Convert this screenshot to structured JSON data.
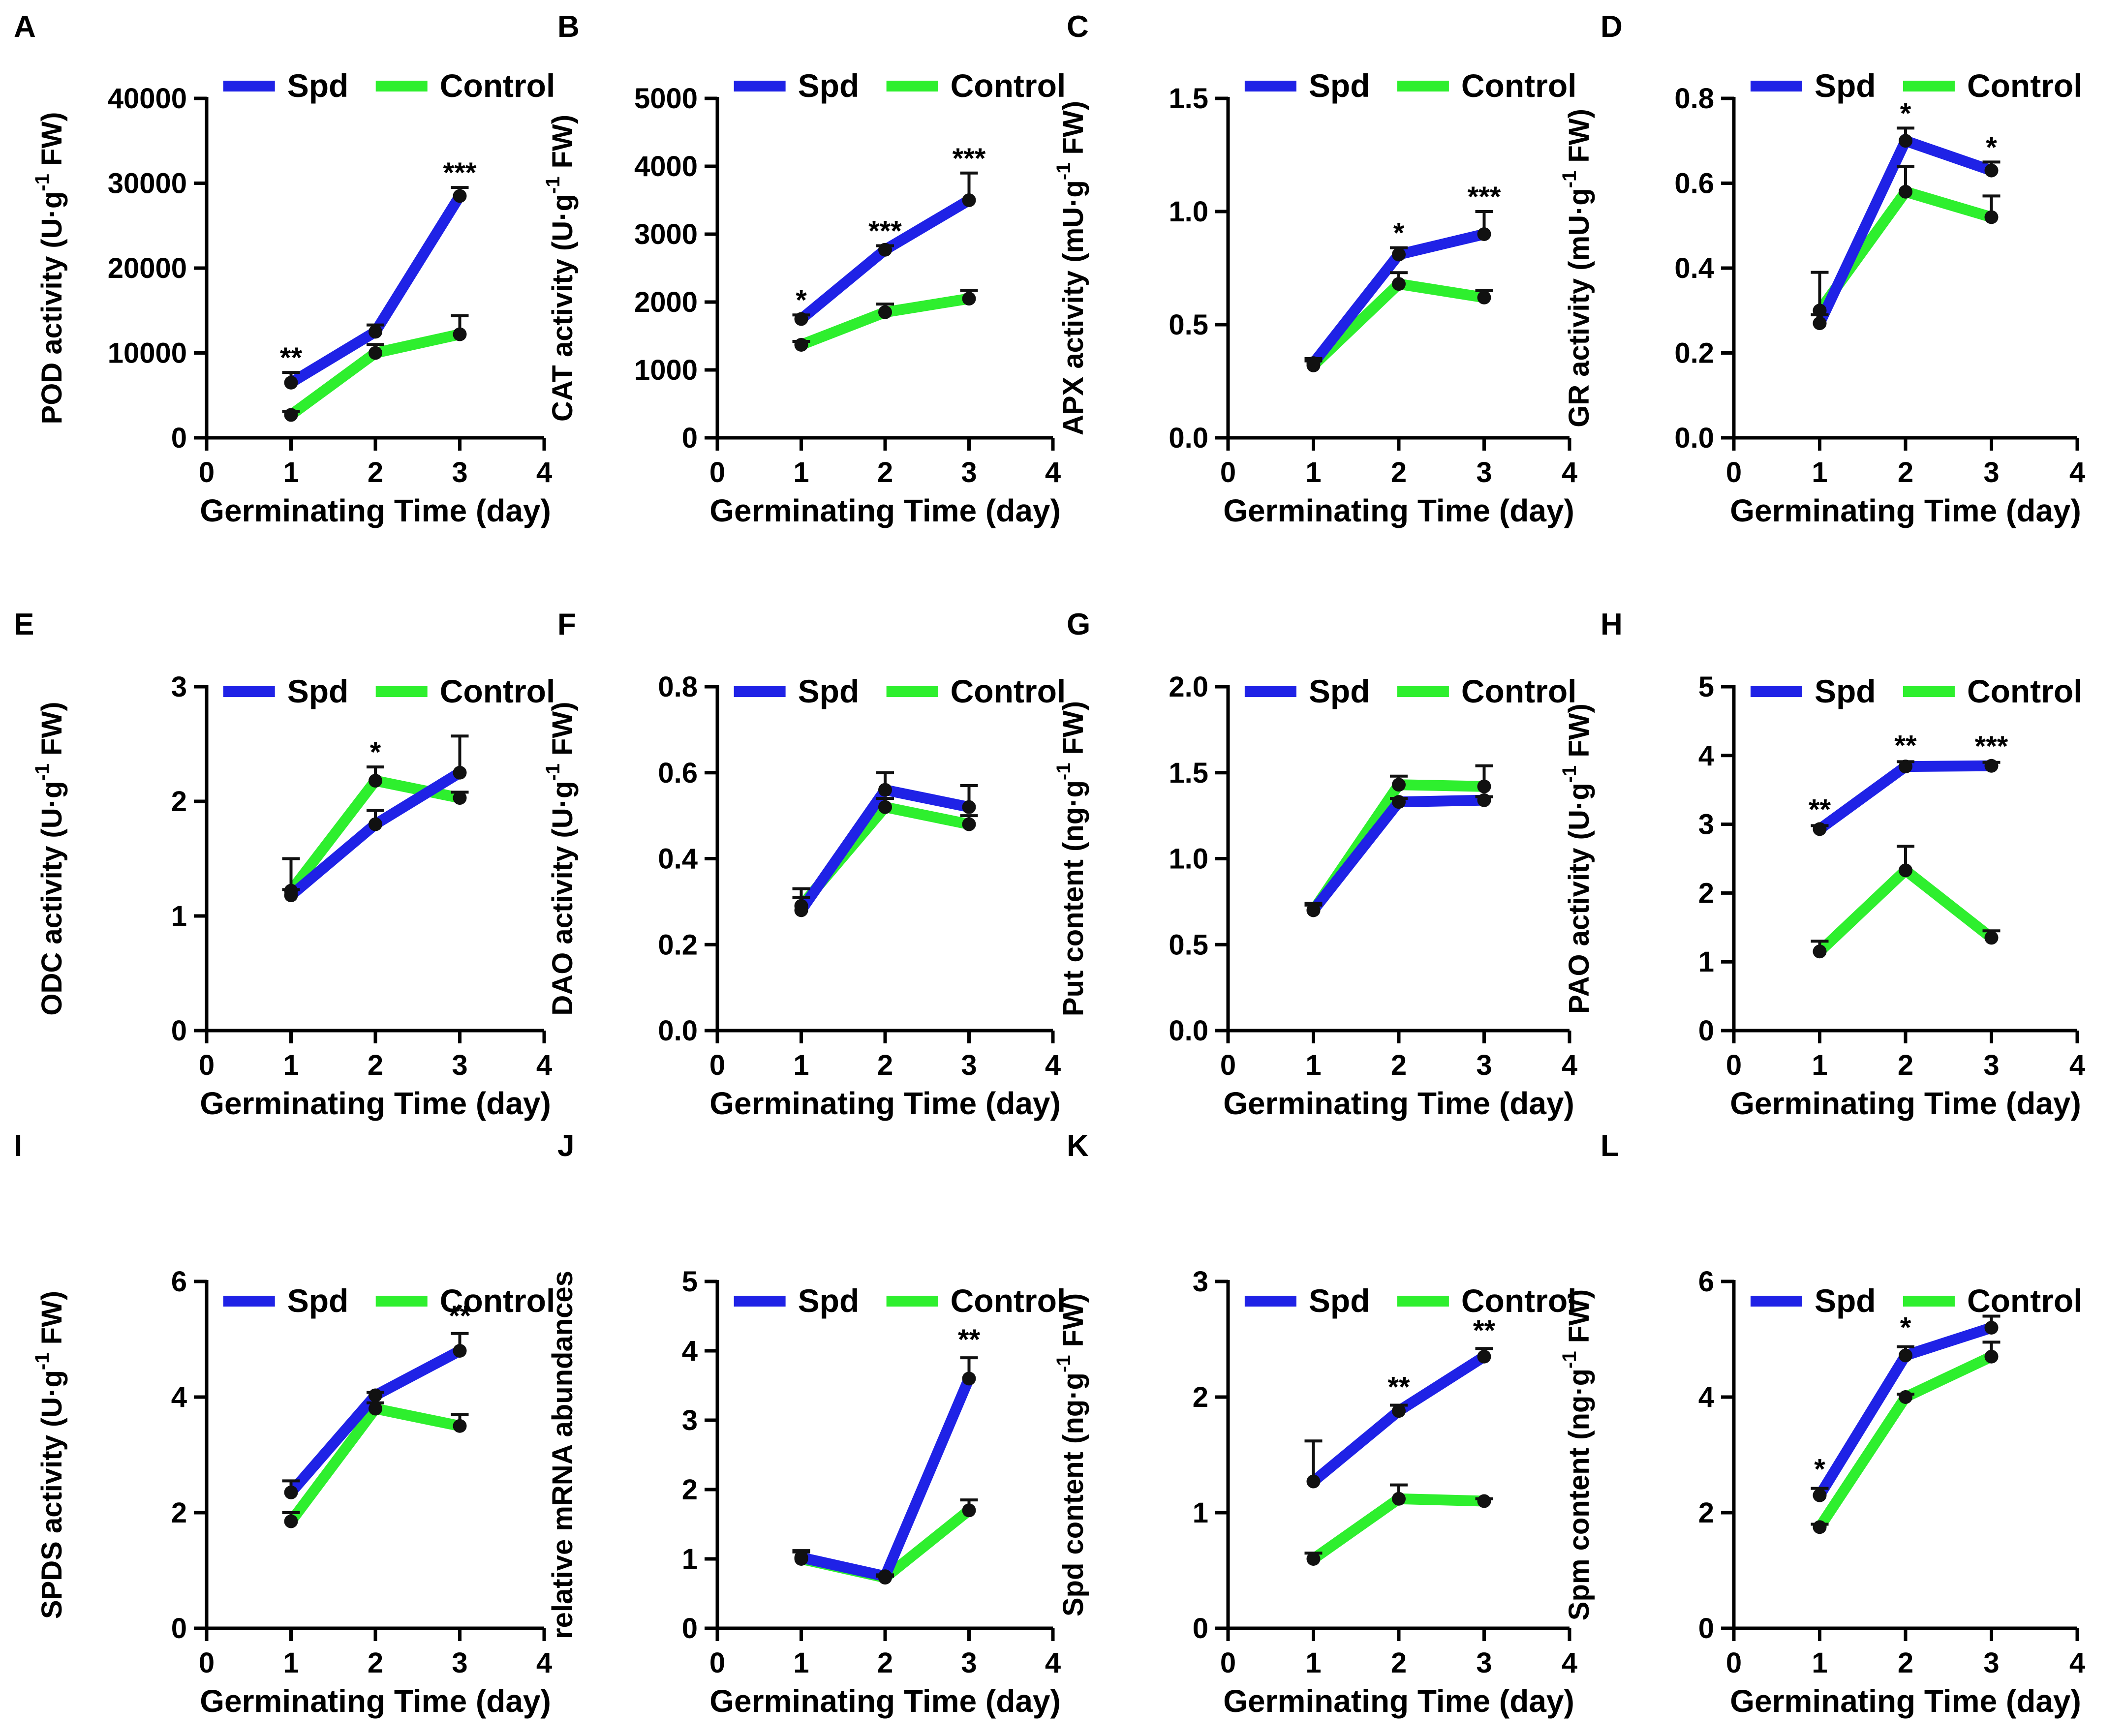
{
  "figure": {
    "colors": {
      "spd": "#1f22e6",
      "control": "#2eef2e",
      "axis": "#000000",
      "marker": "#111111"
    },
    "legend": {
      "spd": "Spd",
      "control": "Control"
    }
  },
  "chart_data": [
    {
      "panel": "A",
      "type": "line",
      "title": "",
      "xlabel": "Germinating Time (day)",
      "ylabel": {
        "main": "POD activity (U·g",
        "sup": "-1",
        "tail": " FW)"
      },
      "x": [
        1,
        2,
        3
      ],
      "xlim": [
        0,
        4
      ],
      "xticks": [
        0,
        1,
        2,
        3,
        4
      ],
      "ylim": [
        0,
        40000
      ],
      "yticks": [
        "0",
        "10000",
        "20000",
        "30000",
        "40000"
      ],
      "series": [
        {
          "name": "Spd",
          "values": [
            6500,
            12500,
            28500
          ],
          "err": [
            1200,
            800,
            1000
          ]
        },
        {
          "name": "Control",
          "values": [
            2700,
            10000,
            12200
          ],
          "err": [
            400,
            1000,
            2200
          ]
        }
      ],
      "annotations": [
        {
          "x": 1,
          "y": 7700,
          "text": "**"
        },
        {
          "x": 3,
          "y": 29500,
          "text": "***"
        }
      ],
      "legend_position": "top"
    },
    {
      "panel": "B",
      "type": "line",
      "title": "",
      "xlabel": "Germinating Time (day)",
      "ylabel": {
        "main": "CAT activity (U·g",
        "sup": "-1",
        "tail": " FW)"
      },
      "x": [
        1,
        2,
        3
      ],
      "xlim": [
        0,
        4
      ],
      "xticks": [
        0,
        1,
        2,
        3,
        4
      ],
      "ylim": [
        0,
        5000
      ],
      "yticks": [
        "0",
        "1000",
        "2000",
        "3000",
        "4000",
        "5000"
      ],
      "series": [
        {
          "name": "Spd",
          "values": [
            1750,
            2770,
            3500
          ],
          "err": [
            60,
            60,
            400
          ]
        },
        {
          "name": "Control",
          "values": [
            1370,
            1850,
            2050
          ],
          "err": [
            50,
            120,
            120
          ]
        }
      ],
      "annotations": [
        {
          "x": 1,
          "y": 1810,
          "text": "*"
        },
        {
          "x": 2,
          "y": 2830,
          "text": "***"
        },
        {
          "x": 3,
          "y": 3900,
          "text": "***"
        }
      ],
      "legend_position": "top"
    },
    {
      "panel": "C",
      "type": "line",
      "title": "",
      "xlabel": "Germinating Time (day)",
      "ylabel": {
        "main": "APX activity (mU·g",
        "sup": "-1",
        "tail": " FW)"
      },
      "x": [
        1,
        2,
        3
      ],
      "xlim": [
        0,
        4
      ],
      "xticks": [
        0,
        1,
        2,
        3,
        4
      ],
      "ylim": [
        0,
        1.5
      ],
      "yticks": [
        "0.0",
        "0.5",
        "1.0",
        "1.5"
      ],
      "series": [
        {
          "name": "Spd",
          "values": [
            0.33,
            0.81,
            0.9
          ],
          "err": [
            0.02,
            0.03,
            0.1
          ]
        },
        {
          "name": "Control",
          "values": [
            0.32,
            0.68,
            0.62
          ],
          "err": [
            0.02,
            0.05,
            0.03
          ]
        }
      ],
      "annotations": [
        {
          "x": 2,
          "y": 0.84,
          "text": "*"
        },
        {
          "x": 3,
          "y": 1.0,
          "text": "***"
        }
      ],
      "legend_position": "top"
    },
    {
      "panel": "D",
      "type": "line",
      "title": "",
      "xlabel": "Germinating Time (day)",
      "ylabel": {
        "main": "GR activity (mU·g",
        "sup": "-1",
        "tail": " FW)"
      },
      "x": [
        1,
        2,
        3
      ],
      "xlim": [
        0,
        4
      ],
      "xticks": [
        0,
        1,
        2,
        3,
        4
      ],
      "ylim": [
        0,
        0.8
      ],
      "yticks": [
        "0.0",
        "0.2",
        "0.4",
        "0.6",
        "0.8"
      ],
      "series": [
        {
          "name": "Spd",
          "values": [
            0.27,
            0.7,
            0.63
          ],
          "err": [
            0.02,
            0.03,
            0.02
          ]
        },
        {
          "name": "Control",
          "values": [
            0.3,
            0.58,
            0.52
          ],
          "err": [
            0.09,
            0.06,
            0.05
          ]
        }
      ],
      "annotations": [
        {
          "x": 2,
          "y": 0.73,
          "text": "*"
        },
        {
          "x": 3,
          "y": 0.65,
          "text": "*"
        }
      ],
      "legend_position": "top"
    },
    {
      "panel": "E",
      "type": "line",
      "title": "",
      "xlabel": "Germinating Time (day)",
      "ylabel": {
        "main": "ODC activity (U·g",
        "sup": "-1",
        "tail": " FW)"
      },
      "x": [
        1,
        2,
        3
      ],
      "xlim": [
        0,
        4
      ],
      "xticks": [
        0,
        1,
        2,
        3,
        4
      ],
      "ylim": [
        0,
        3
      ],
      "yticks": [
        "0",
        "1",
        "2",
        "3"
      ],
      "series": [
        {
          "name": "Spd",
          "values": [
            1.18,
            1.8,
            2.25
          ],
          "err": [
            0.05,
            0.12,
            0.32
          ]
        },
        {
          "name": "Control",
          "values": [
            1.22,
            2.18,
            2.03
          ],
          "err": [
            0.28,
            0.12,
            0.05
          ]
        }
      ],
      "annotations": [
        {
          "x": 2,
          "y": 2.3,
          "text": "*"
        }
      ],
      "legend_position": "top"
    },
    {
      "panel": "F",
      "type": "line",
      "title": "",
      "xlabel": "Germinating Time (day)",
      "ylabel": {
        "main": "DAO activity (U·g",
        "sup": "-1",
        "tail": " FW)"
      },
      "x": [
        1,
        2,
        3
      ],
      "xlim": [
        0,
        4
      ],
      "xticks": [
        0,
        1,
        2,
        3,
        4
      ],
      "ylim": [
        0,
        0.8
      ],
      "yticks": [
        "0.0",
        "0.2",
        "0.4",
        "0.6",
        "0.8"
      ],
      "series": [
        {
          "name": "Spd",
          "values": [
            0.28,
            0.56,
            0.52
          ],
          "err": [
            0.05,
            0.04,
            0.05
          ]
        },
        {
          "name": "Control",
          "values": [
            0.29,
            0.52,
            0.48
          ],
          "err": [
            0.02,
            0.02,
            0.02
          ]
        }
      ],
      "annotations": [],
      "legend_position": "top"
    },
    {
      "panel": "G",
      "type": "line",
      "title": "",
      "xlabel": "Germinating Time (day)",
      "ylabel": {
        "main": "Put content (ng·g",
        "sup": "-1",
        "tail": " FW)"
      },
      "x": [
        1,
        2,
        3
      ],
      "xlim": [
        0,
        4
      ],
      "xticks": [
        0,
        1,
        2,
        3,
        4
      ],
      "ylim": [
        0,
        2.0
      ],
      "yticks": [
        "0.0",
        "0.5",
        "1.0",
        "1.5",
        "2.0"
      ],
      "series": [
        {
          "name": "Spd",
          "values": [
            0.7,
            1.33,
            1.34
          ],
          "err": [
            0.04,
            0.02,
            0.02
          ]
        },
        {
          "name": "Control",
          "values": [
            0.7,
            1.43,
            1.42
          ],
          "err": [
            0.03,
            0.05,
            0.12
          ]
        }
      ],
      "annotations": [],
      "legend_position": "top"
    },
    {
      "panel": "H",
      "type": "line",
      "title": "",
      "xlabel": "Germinating Time (day)",
      "ylabel": {
        "main": "PAO activity (U·g",
        "sup": "-1",
        "tail": " FW)"
      },
      "x": [
        1,
        2,
        3
      ],
      "xlim": [
        0,
        4
      ],
      "xticks": [
        0,
        1,
        2,
        3,
        4
      ],
      "ylim": [
        0,
        5
      ],
      "yticks": [
        "0",
        "1",
        "2",
        "3",
        "4",
        "5"
      ],
      "series": [
        {
          "name": "Spd",
          "values": [
            2.93,
            3.84,
            3.85
          ],
          "err": [
            0.05,
            0.07,
            0.05
          ]
        },
        {
          "name": "Control",
          "values": [
            1.15,
            2.33,
            1.35
          ],
          "err": [
            0.15,
            0.35,
            0.1
          ]
        }
      ],
      "annotations": [
        {
          "x": 1,
          "y": 3.0,
          "text": "**"
        },
        {
          "x": 2,
          "y": 3.93,
          "text": "**"
        },
        {
          "x": 3,
          "y": 3.92,
          "text": "***"
        }
      ],
      "legend_position": "top"
    },
    {
      "panel": "I",
      "type": "line",
      "title": "",
      "xlabel": "Germinating Time (day)",
      "ylabel": {
        "main": "SPDS activity (U·g",
        "sup": "-1",
        "tail": " FW)"
      },
      "x": [
        1,
        2,
        3
      ],
      "xlim": [
        0,
        4
      ],
      "xticks": [
        0,
        1,
        2,
        3,
        4
      ],
      "ylim": [
        0,
        6
      ],
      "yticks": [
        "0",
        "2",
        "4",
        "6"
      ],
      "series": [
        {
          "name": "Spd",
          "values": [
            2.35,
            4.03,
            4.8
          ],
          "err": [
            0.2,
            0.05,
            0.3
          ]
        },
        {
          "name": "Control",
          "values": [
            1.85,
            3.8,
            3.5
          ],
          "err": [
            0.15,
            0.1,
            0.2
          ]
        }
      ],
      "annotations": [
        {
          "x": 3,
          "y": 5.15,
          "text": "**"
        }
      ],
      "legend_position": "top"
    },
    {
      "panel": "J",
      "type": "line",
      "title": "",
      "xlabel": "Germinating Time (day)",
      "ylabel": {
        "main": "relative mRNA abundances",
        "sup": "",
        "tail": ""
      },
      "x": [
        1,
        2,
        3
      ],
      "xlim": [
        0,
        4
      ],
      "xticks": [
        0,
        1,
        2,
        3,
        4
      ],
      "ylim": [
        0,
        5
      ],
      "yticks": [
        "0",
        "1",
        "2",
        "3",
        "4",
        "5"
      ],
      "series": [
        {
          "name": "Spd",
          "values": [
            1.02,
            0.75,
            3.6
          ],
          "err": [
            0.1,
            0.02,
            0.3
          ]
        },
        {
          "name": "Control",
          "values": [
            1.0,
            0.73,
            1.7
          ],
          "err": [
            0.1,
            0.02,
            0.15
          ]
        }
      ],
      "annotations": [
        {
          "x": 3,
          "y": 3.95,
          "text": "**"
        }
      ],
      "legend_position": "top"
    },
    {
      "panel": "K",
      "type": "line",
      "title": "",
      "xlabel": "Germinating Time (day)",
      "ylabel": {
        "main": "Spd content (ng·g",
        "sup": "-1",
        "tail": " FW)"
      },
      "x": [
        1,
        2,
        3
      ],
      "xlim": [
        0,
        4
      ],
      "xticks": [
        0,
        1,
        2,
        3,
        4
      ],
      "ylim": [
        0,
        3
      ],
      "yticks": [
        "0",
        "1",
        "2",
        "3"
      ],
      "series": [
        {
          "name": "Spd",
          "values": [
            1.27,
            1.88,
            2.35
          ],
          "err": [
            0.35,
            0.05,
            0.07
          ]
        },
        {
          "name": "Control",
          "values": [
            0.6,
            1.12,
            1.1
          ],
          "err": [
            0.05,
            0.12,
            0.02
          ]
        }
      ],
      "annotations": [
        {
          "x": 2,
          "y": 1.96,
          "text": "**"
        },
        {
          "x": 3,
          "y": 2.45,
          "text": "**"
        }
      ],
      "legend_position": "top"
    },
    {
      "panel": "L",
      "type": "line",
      "title": "",
      "xlabel": "Germinating Time (day)",
      "ylabel": {
        "main": "Spm content (ng·g",
        "sup": "-1",
        "tail": " FW)"
      },
      "x": [
        1,
        2,
        3
      ],
      "xlim": [
        0,
        4
      ],
      "xticks": [
        0,
        1,
        2,
        3,
        4
      ],
      "ylim": [
        0,
        6
      ],
      "yticks": [
        "0",
        "2",
        "4",
        "6"
      ],
      "series": [
        {
          "name": "Spd",
          "values": [
            2.3,
            4.72,
            5.2
          ],
          "err": [
            0.12,
            0.15,
            0.2
          ]
        },
        {
          "name": "Control",
          "values": [
            1.75,
            4.0,
            4.7
          ],
          "err": [
            0.05,
            0.05,
            0.25
          ]
        }
      ],
      "annotations": [
        {
          "x": 1,
          "y": 2.5,
          "text": "*"
        },
        {
          "x": 2,
          "y": 4.95,
          "text": "*"
        }
      ],
      "legend_position": "top"
    }
  ]
}
